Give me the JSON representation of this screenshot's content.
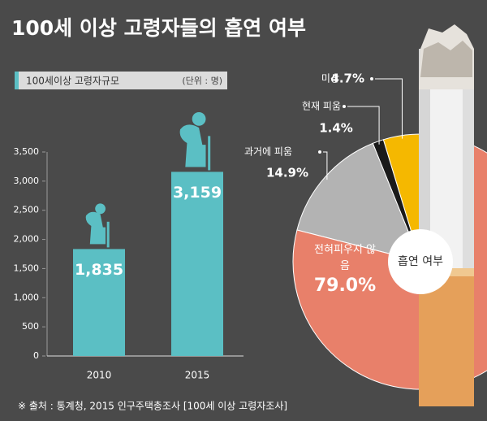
{
  "title": "100세 이상 고령자들의 흡연 여부",
  "source": "※ 출처 : 통계청, 2015 인구주택총조사 [100세 이상 고령자조사]",
  "chart_data": [
    {
      "type": "bar",
      "title": "100세이상 고령자규모",
      "unit": "(단위 : 명)",
      "categories": [
        "2010",
        "2015"
      ],
      "values": [
        1835,
        3159
      ],
      "value_labels": [
        "1,835",
        "3,159"
      ],
      "color": "#5bbfc4",
      "ylim": [
        0,
        3500
      ],
      "yticks": [
        0,
        500,
        {
          "value": 1000,
          "label": "1,000"
        },
        {
          "value": 1500,
          "label": "1,500"
        },
        {
          "value": 2000,
          "label": "2,000"
        },
        {
          "value": 2500,
          "label": "2,500"
        },
        {
          "value": 3000,
          "label": "3,000"
        },
        {
          "value": 3500,
          "label": "3,500"
        }
      ]
    },
    {
      "type": "pie",
      "title": "흡연 여부",
      "categories": [
        "미상",
        "현재 피움",
        "과거에 피움",
        "전혀피우지 않음"
      ],
      "values": [
        4.7,
        1.4,
        14.9,
        79.0
      ],
      "value_labels": [
        "4.7%",
        "1.4%",
        "14.9%",
        "79.0%"
      ],
      "colors": [
        "#f5b800",
        "#1a1a1a",
        "#b3b3b3",
        "#e8806a"
      ]
    }
  ]
}
